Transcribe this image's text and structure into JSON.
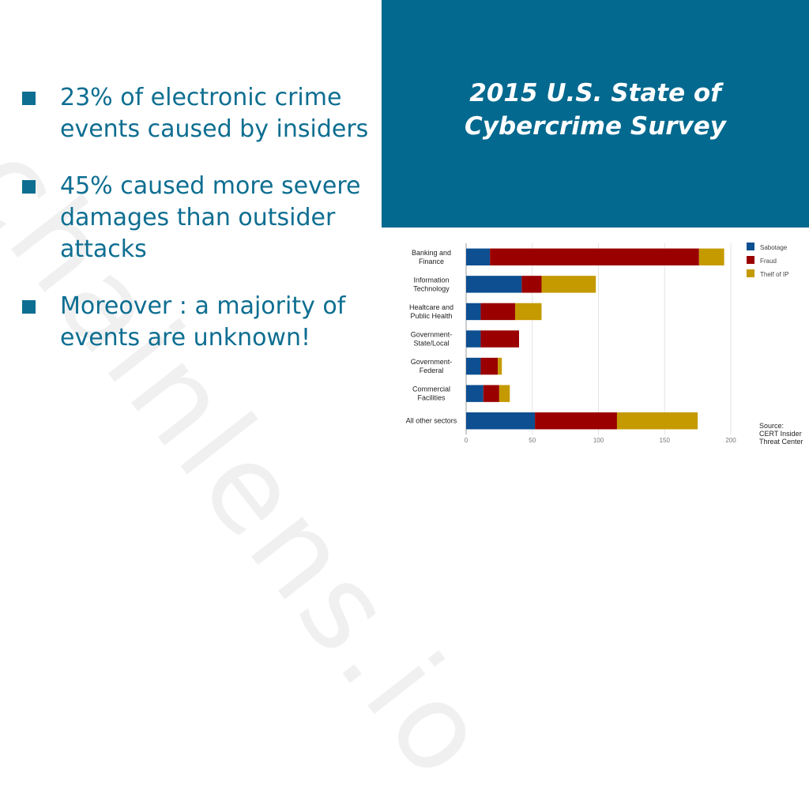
{
  "watermark": "chainlens.io",
  "bullets": [
    {
      "text": "23% of electronic crime events caused by insiders"
    },
    {
      "text": "45% caused more severe damages than outsider attacks"
    },
    {
      "text": "Moreover : a majority of events are unknown!"
    }
  ],
  "title": {
    "line1": "2015 U.S. State of",
    "line2": "Cybercrime Survey"
  },
  "source": {
    "line1": "Source:",
    "line2": "CERT Insider",
    "line3": "Threat Center"
  },
  "colors": {
    "accent": "#0e6e91",
    "title_bg": "#04698f"
  },
  "chart_data": {
    "type": "bar",
    "orientation": "horizontal",
    "stacked": true,
    "categories": [
      [
        "Banking and",
        "Finance"
      ],
      [
        "Information",
        "Technology"
      ],
      [
        "Healtcare and",
        "Public Health"
      ],
      [
        "Government-",
        "State/Local"
      ],
      [
        "Government-",
        "Federal"
      ],
      [
        "Commercial",
        "Facilities"
      ],
      [
        "All other sectors"
      ]
    ],
    "series": [
      {
        "name": "Sabotage",
        "color": "#0d4f91",
        "values": [
          18,
          42,
          11,
          11,
          11,
          13,
          52
        ]
      },
      {
        "name": "Fraud",
        "color": "#9a0000",
        "values": [
          158,
          15,
          26,
          29,
          13,
          12,
          62
        ]
      },
      {
        "name": "Thelf of IP",
        "color": "#c49a00",
        "values": [
          19,
          41,
          20,
          0,
          3,
          8,
          61
        ]
      }
    ],
    "xticks": [
      0,
      50,
      100,
      150,
      200
    ],
    "xlim": [
      0,
      200
    ],
    "grid": true,
    "legend_position": "right"
  }
}
